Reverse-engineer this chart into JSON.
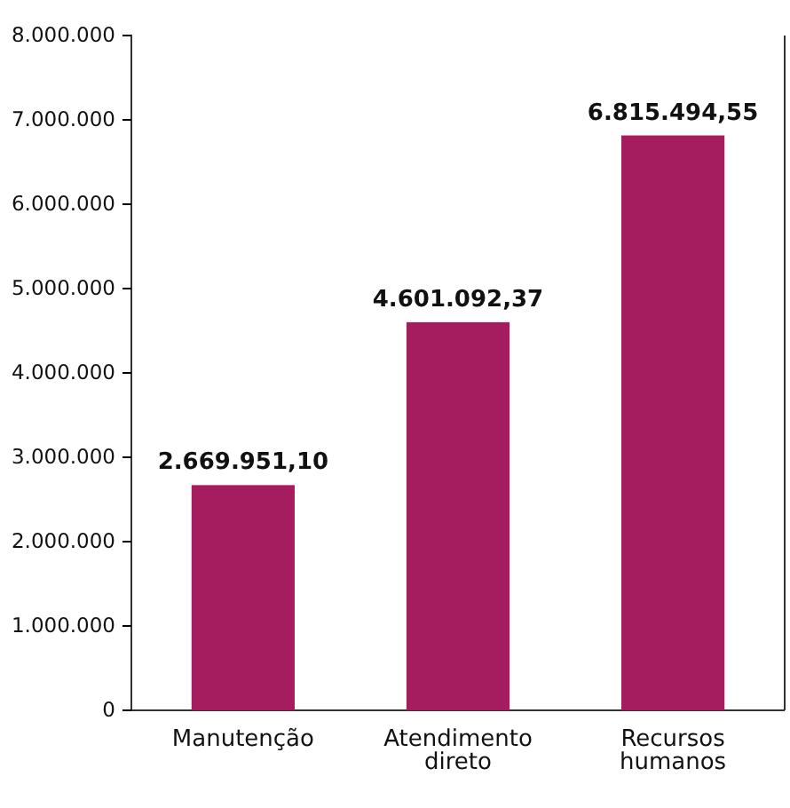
{
  "chart_data": {
    "type": "bar",
    "categories": [
      "Manutenção",
      "Atendimento direto",
      "Recursos humanos"
    ],
    "values": [
      2669951.1,
      4601092.37,
      6815494.55
    ],
    "value_labels": [
      "2.669.951,10",
      "4.601.092,37",
      "6.815.494,55"
    ],
    "color": "#a51c5f",
    "ylim": [
      0,
      8000000
    ],
    "yticks": [
      0,
      {
        "value": 1000000,
        "label": "1.000.000"
      },
      {
        "value": 2000000,
        "label": "2.000.000"
      },
      {
        "value": 3000000,
        "label": "3.000.000"
      },
      {
        "value": 4000000,
        "label": "4.000.000"
      },
      {
        "value": 5000000,
        "label": "5.000.000"
      },
      {
        "value": 6000000,
        "label": "6.000.000"
      },
      {
        "value": 7000000,
        "label": "7.000.000"
      },
      {
        "value": 8000000,
        "label": "8.000.000"
      }
    ],
    "grid": false
  }
}
